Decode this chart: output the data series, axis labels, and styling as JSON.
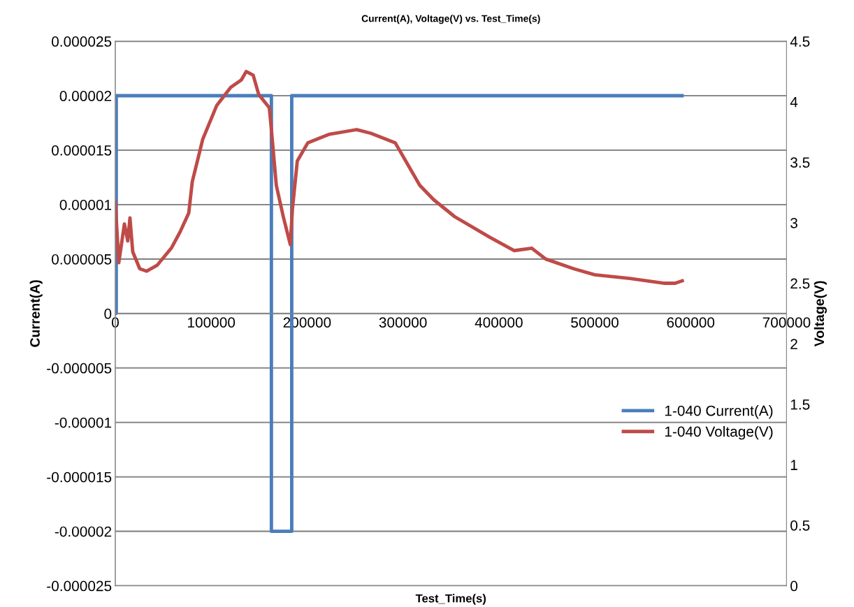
{
  "chart_data": {
    "type": "line",
    "title": "Current(A), Voltage(V) vs. Test_Time(s)",
    "xlabel": "Test_Time(s)",
    "ylabel": "Current(A)",
    "y2label": "Voltage(V)",
    "xlim": [
      0,
      700000
    ],
    "xticks": [
      0,
      100000,
      200000,
      300000,
      400000,
      500000,
      600000,
      700000
    ],
    "ylim": [
      -2.5e-05,
      2.5e-05
    ],
    "yticks": [
      {
        "value": -2.5e-05,
        "label": "-0.000025"
      },
      {
        "value": -2e-05,
        "label": "-0.00002"
      },
      {
        "value": -1.5e-05,
        "label": "-0.000015"
      },
      {
        "value": -1e-05,
        "label": "-0.00001"
      },
      {
        "value": -5e-06,
        "label": "-0.000005"
      },
      {
        "value": 0,
        "label": "0"
      },
      {
        "value": 5e-06,
        "label": "0.000005"
      },
      {
        "value": 1e-05,
        "label": "0.00001"
      },
      {
        "value": 1.5e-05,
        "label": "0.000015"
      },
      {
        "value": 2e-05,
        "label": "0.00002"
      },
      {
        "value": 2.5e-05,
        "label": "0.000025"
      }
    ],
    "y2lim": [
      0,
      4.5
    ],
    "y2ticks": [
      0,
      0.5,
      1,
      1.5,
      2,
      2.5,
      3,
      3.5,
      4,
      4.5
    ],
    "grid": "y",
    "legend": "right",
    "marker": "none",
    "line_style": "solid",
    "series": [
      {
        "name": "1-040 Current(A)",
        "color": "#4a7ebb",
        "x": [
          0,
          1000,
          1000,
          162800,
          162800,
          184000,
          184000,
          591000
        ],
        "values": [
          0,
          0,
          2e-05,
          2e-05,
          -2e-05,
          -2e-05,
          2e-05,
          2e-05
        ]
      },
      {
        "name": "1-040 Voltage(V)",
        "color": "#be4b48",
        "axis": "y2",
        "x": [
          0,
          3650,
          9500,
          13000,
          15300,
          18200,
          25500,
          32800,
          43800,
          58400,
          67900,
          76600,
          80300,
          91200,
          105800,
          120400,
          131400,
          136500,
          143800,
          149600,
          160600,
          162800,
          167900,
          175200,
          182500,
          184700,
          189800,
          200700,
          222600,
          251800,
          266400,
          292000,
          317500,
          332100,
          354000,
          390500,
          416100,
          434300,
          448900,
          478100,
          500000,
          536500,
          573000,
          583900,
          591200
        ],
        "values": [
          3.17,
          2.67,
          2.99,
          2.85,
          3.04,
          2.76,
          2.62,
          2.6,
          2.65,
          2.79,
          2.93,
          3.08,
          3.34,
          3.69,
          3.97,
          4.12,
          4.18,
          4.25,
          4.22,
          4.06,
          3.95,
          3.77,
          3.31,
          3.05,
          2.82,
          3.11,
          3.51,
          3.66,
          3.73,
          3.77,
          3.74,
          3.66,
          3.31,
          3.19,
          3.05,
          2.88,
          2.77,
          2.79,
          2.7,
          2.62,
          2.57,
          2.54,
          2.5,
          2.5,
          2.52
        ]
      }
    ]
  }
}
